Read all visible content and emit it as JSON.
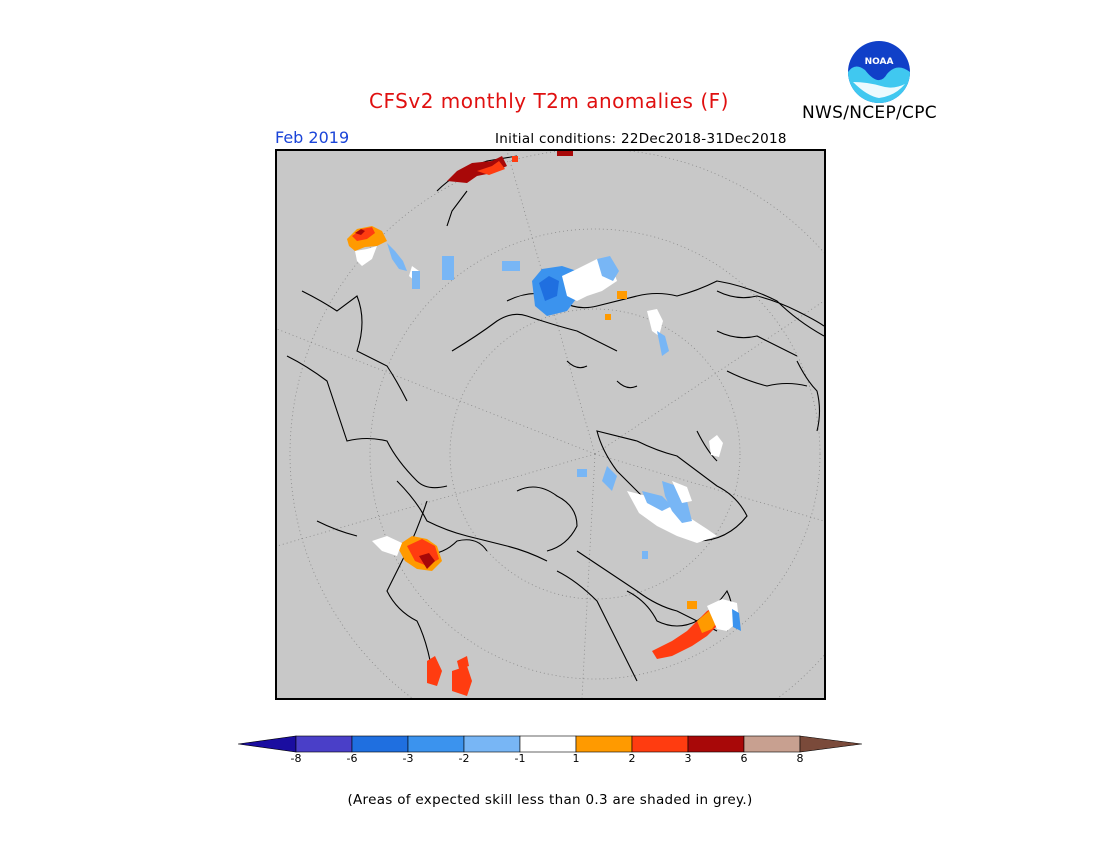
{
  "header": {
    "title": "CFSv2 monthly T2m anomalies (F)",
    "month": "Feb 2019",
    "initial_conditions": "Initial conditions: 22Dec2018-31Dec2018",
    "agency": "NWS/NCEP/CPC",
    "logo_text": "NOAA"
  },
  "legend": {
    "ticks": [
      "-8",
      "-6",
      "-3",
      "-2",
      "-1",
      "1",
      "2",
      "3",
      "6",
      "8"
    ],
    "colors": [
      "#1a0da0",
      "#4a3fc8",
      "#1f6fe0",
      "#3b93ee",
      "#78b6f5",
      "#ffffff",
      "#ff9a00",
      "#ff3c10",
      "#a80808",
      "#c8a090",
      "#7a4a3a"
    ]
  },
  "footnote": "(Areas of expected skill less than 0.3 are shaded in grey.)",
  "colors": {
    "map_background": "#c8c8c8",
    "title": "#e01010",
    "month": "#1a44d8"
  }
}
